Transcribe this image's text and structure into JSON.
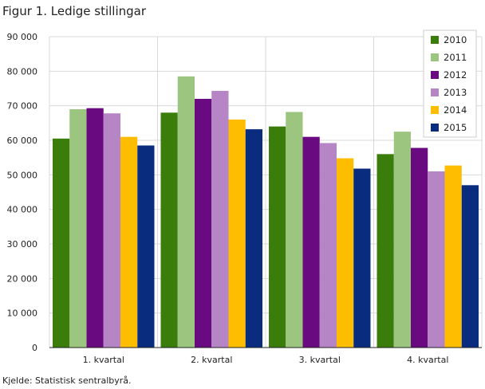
{
  "title": "Figur 1. Ledige stillingar",
  "source": "Kjelde: Statistisk sentralbyrå.",
  "chart_data": {
    "type": "bar",
    "title": "Figur 1. Ledige stillingar",
    "xlabel": "",
    "ylabel": "",
    "categories": [
      "1. kvartal",
      "2. kvartal",
      "3. kvartal",
      "4. kvartal"
    ],
    "ylim": [
      0,
      90000
    ],
    "yticks": [
      0,
      10000,
      20000,
      30000,
      40000,
      50000,
      60000,
      70000,
      80000,
      90000
    ],
    "ytick_labels": [
      "0",
      "10 000",
      "20 000",
      "30 000",
      "40 000",
      "50 000",
      "60 000",
      "70 000",
      "80 000",
      "90 000"
    ],
    "grid": true,
    "legend": "top-right",
    "series": [
      {
        "name": "2010",
        "color": "#3a7d0a",
        "values": [
          60500,
          68000,
          64000,
          56000
        ]
      },
      {
        "name": "2011",
        "color": "#9cc57f",
        "values": [
          69000,
          78500,
          68200,
          62500
        ]
      },
      {
        "name": "2012",
        "color": "#6a0a80",
        "values": [
          69300,
          72000,
          61000,
          57800
        ]
      },
      {
        "name": "2013",
        "color": "#b585c6",
        "values": [
          67800,
          74300,
          59200,
          51000
        ]
      },
      {
        "name": "2014",
        "color": "#ffbd00",
        "values": [
          61000,
          66000,
          54800,
          52700
        ]
      },
      {
        "name": "2015",
        "color": "#0a2c7e",
        "values": [
          58500,
          63200,
          51800,
          47000
        ]
      }
    ]
  }
}
